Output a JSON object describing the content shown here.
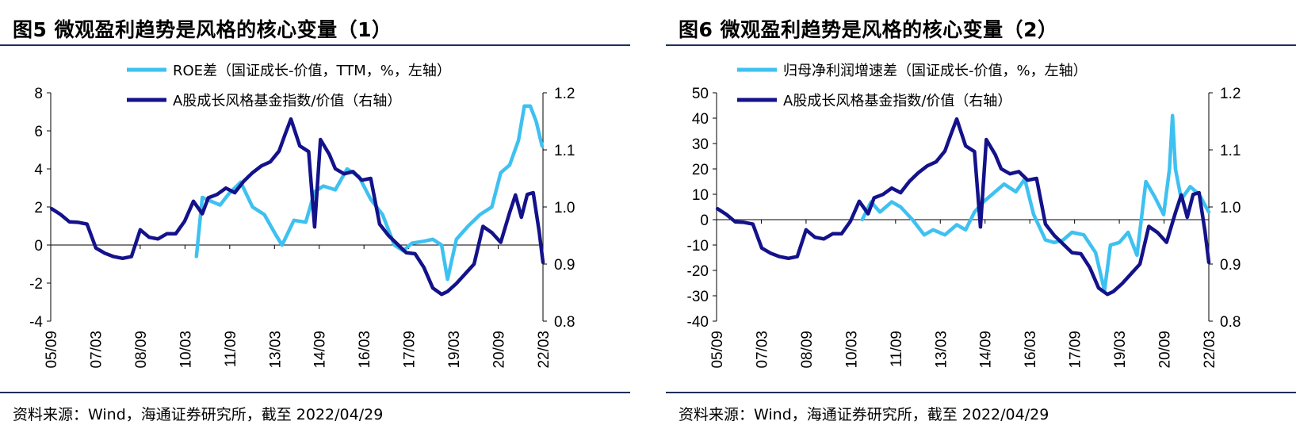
{
  "figures": [
    {
      "title": "图5  微观盈利趋势是风格的核心变量（1）",
      "source": "资料来源：Wind，海通证券研究所，截至 2022/04/29",
      "legend": [
        "ROE差（国证成长-价值，TTM，%，左轴）",
        "A股成长风格基金指数/价值（右轴）"
      ],
      "y_left_ticks": [
        "8",
        "6",
        "4",
        "2",
        "0",
        "-2",
        "-4"
      ],
      "y_right_ticks": [
        "1.2",
        "1.1",
        "1.0",
        "0.9",
        "0.8"
      ],
      "x_ticks": [
        "05/09",
        "07/03",
        "08/09",
        "10/03",
        "11/09",
        "13/03",
        "14/09",
        "16/03",
        "17/09",
        "19/03",
        "20/09",
        "22/03"
      ]
    },
    {
      "title": "图6  微观盈利趋势是风格的核心变量（2）",
      "source": "资料来源：Wind，海通证券研究所，截至 2022/04/29",
      "legend": [
        "归母净利润增速差（国证成长-价值，%，左轴）",
        "A股成长风格基金指数/价值（右轴）"
      ],
      "y_left_ticks": [
        "50",
        "40",
        "30",
        "20",
        "10",
        "0",
        "-10",
        "-20",
        "-30",
        "-40"
      ],
      "y_right_ticks": [
        "1.2",
        "1.1",
        "1.0",
        "0.9",
        "0.8"
      ],
      "x_ticks": [
        "05/09",
        "07/03",
        "08/09",
        "10/03",
        "11/09",
        "13/03",
        "14/09",
        "16/03",
        "17/09",
        "19/03",
        "20/09",
        "22/03"
      ]
    }
  ],
  "colors": {
    "light_series": "#3ec1f0",
    "dark_series": "#14128a",
    "rule": "#1f2d5c"
  },
  "chart_data": [
    {
      "type": "line",
      "title": "微观盈利趋势是风格的核心变量（1）",
      "x_range": [
        "2005-09",
        "2022-04"
      ],
      "ylim_left": [
        -4,
        8
      ],
      "ylim_right": [
        0.8,
        1.2
      ],
      "series": [
        {
          "name": "ROE差（国证成长-价值，TTM，%，左轴）",
          "axis": "left",
          "x": [
            2010.6,
            2010.8,
            2011.1,
            2011.4,
            2011.7,
            2012.1,
            2012.5,
            2012.9,
            2013.3,
            2013.5,
            2013.9,
            2014.3,
            2014.6,
            2014.9,
            2015.3,
            2015.7,
            2016.1,
            2016.5,
            2016.9,
            2017.3,
            2017.6,
            2017.9,
            2018.3,
            2018.6,
            2018.9,
            2019.1,
            2019.4,
            2019.8,
            2020.2,
            2020.6,
            2020.9,
            2021.2,
            2021.5,
            2021.7,
            2021.9,
            2022.1,
            2022.3
          ],
          "values": [
            -0.6,
            2.5,
            2.3,
            2.1,
            2.7,
            3.3,
            2.0,
            1.6,
            0.5,
            0.0,
            1.3,
            1.2,
            2.8,
            3.1,
            2.9,
            4.0,
            3.6,
            2.4,
            1.6,
            0.0,
            -0.3,
            0.1,
            0.2,
            0.3,
            0.0,
            -1.8,
            0.3,
            1.0,
            1.6,
            2.0,
            3.8,
            4.2,
            5.5,
            7.3,
            7.3,
            6.5,
            5.2
          ]
        },
        {
          "name": "A股成长风格基金指数/价值（右轴）",
          "axis": "right",
          "x": [
            2005.7,
            2006.0,
            2006.3,
            2006.6,
            2006.9,
            2007.2,
            2007.5,
            2007.8,
            2008.1,
            2008.4,
            2008.7,
            2009.0,
            2009.3,
            2009.6,
            2009.9,
            2010.2,
            2010.5,
            2010.8,
            2011.0,
            2011.3,
            2011.6,
            2011.9,
            2012.2,
            2012.5,
            2012.8,
            2013.1,
            2013.4,
            2013.6,
            2013.8,
            2014.1,
            2014.4,
            2014.6,
            2014.8,
            2015.1,
            2015.3,
            2015.6,
            2015.9,
            2016.2,
            2016.5,
            2016.8,
            2017.1,
            2017.4,
            2017.7,
            2018.0,
            2018.3,
            2018.6,
            2018.9,
            2019.1,
            2019.4,
            2019.7,
            2020.0,
            2020.3,
            2020.6,
            2020.9,
            2021.2,
            2021.4,
            2021.6,
            2021.8,
            2022.0,
            2022.2,
            2022.33
          ],
          "values": [
            0.997,
            0.987,
            0.974,
            0.973,
            0.97,
            0.928,
            0.919,
            0.913,
            0.91,
            0.913,
            0.96,
            0.947,
            0.944,
            0.953,
            0.953,
            0.975,
            1.01,
            0.988,
            1.016,
            1.022,
            1.033,
            1.025,
            1.045,
            1.06,
            1.072,
            1.079,
            1.098,
            1.127,
            1.154,
            1.107,
            1.097,
            0.965,
            1.118,
            1.092,
            1.067,
            1.058,
            1.062,
            1.047,
            1.05,
            0.97,
            0.95,
            0.935,
            0.92,
            0.918,
            0.894,
            0.858,
            0.847,
            0.852,
            0.866,
            0.883,
            0.9,
            0.966,
            0.955,
            0.938,
            0.99,
            1.021,
            0.982,
            1.022,
            1.025,
            0.957,
            0.903
          ]
        }
      ]
    },
    {
      "type": "line",
      "title": "微观盈利趋势是风格的核心变量（2）",
      "x_range": [
        "2005-09",
        "2022-04"
      ],
      "ylim_left": [
        -40,
        50
      ],
      "ylim_right": [
        0.8,
        1.2
      ],
      "series": [
        {
          "name": "归母净利润增速差（国证成长-价值，%，左轴）",
          "axis": "left",
          "x": [
            2010.6,
            2010.9,
            2011.2,
            2011.6,
            2011.9,
            2012.3,
            2012.7,
            2013.0,
            2013.4,
            2013.8,
            2014.1,
            2014.4,
            2014.7,
            2015.0,
            2015.4,
            2015.8,
            2016.1,
            2016.4,
            2016.8,
            2017.1,
            2017.4,
            2017.7,
            2018.1,
            2018.5,
            2018.8,
            2019.0,
            2019.3,
            2019.6,
            2019.9,
            2020.2,
            2020.5,
            2020.8,
            2021.0,
            2021.1,
            2021.2,
            2021.4,
            2021.7,
            2022.0,
            2022.33
          ],
          "values": [
            0,
            7,
            3,
            7,
            5,
            0,
            -6,
            -4,
            -6,
            -2,
            -4,
            3,
            7,
            10,
            14,
            11,
            16,
            2,
            -8,
            -9,
            -8,
            -5,
            -6,
            -13,
            -28,
            -10,
            -9,
            -5,
            -14,
            15,
            9,
            2,
            20,
            41,
            20,
            8,
            13,
            10,
            3
          ]
        },
        {
          "name": "A股成长风格基金指数/价值（右轴）",
          "axis": "right",
          "x": [
            2005.7,
            2006.0,
            2006.3,
            2006.6,
            2006.9,
            2007.2,
            2007.5,
            2007.8,
            2008.1,
            2008.4,
            2008.7,
            2009.0,
            2009.3,
            2009.6,
            2009.9,
            2010.2,
            2010.5,
            2010.8,
            2011.0,
            2011.3,
            2011.6,
            2011.9,
            2012.2,
            2012.5,
            2012.8,
            2013.1,
            2013.4,
            2013.6,
            2013.8,
            2014.1,
            2014.4,
            2014.6,
            2014.8,
            2015.1,
            2015.3,
            2015.6,
            2015.9,
            2016.2,
            2016.5,
            2016.8,
            2017.1,
            2017.4,
            2017.7,
            2018.0,
            2018.3,
            2018.6,
            2018.9,
            2019.1,
            2019.4,
            2019.7,
            2020.0,
            2020.3,
            2020.6,
            2020.9,
            2021.2,
            2021.4,
            2021.6,
            2021.8,
            2022.0,
            2022.2,
            2022.33
          ],
          "values": [
            0.997,
            0.987,
            0.974,
            0.973,
            0.97,
            0.928,
            0.919,
            0.913,
            0.91,
            0.913,
            0.96,
            0.947,
            0.944,
            0.953,
            0.953,
            0.975,
            1.01,
            0.988,
            1.016,
            1.022,
            1.033,
            1.025,
            1.045,
            1.06,
            1.072,
            1.079,
            1.098,
            1.127,
            1.154,
            1.107,
            1.097,
            0.965,
            1.118,
            1.092,
            1.067,
            1.058,
            1.062,
            1.047,
            1.05,
            0.97,
            0.95,
            0.935,
            0.92,
            0.918,
            0.894,
            0.858,
            0.847,
            0.852,
            0.866,
            0.883,
            0.9,
            0.966,
            0.955,
            0.938,
            0.99,
            1.021,
            0.982,
            1.022,
            1.025,
            0.957,
            0.903
          ]
        }
      ]
    }
  ]
}
